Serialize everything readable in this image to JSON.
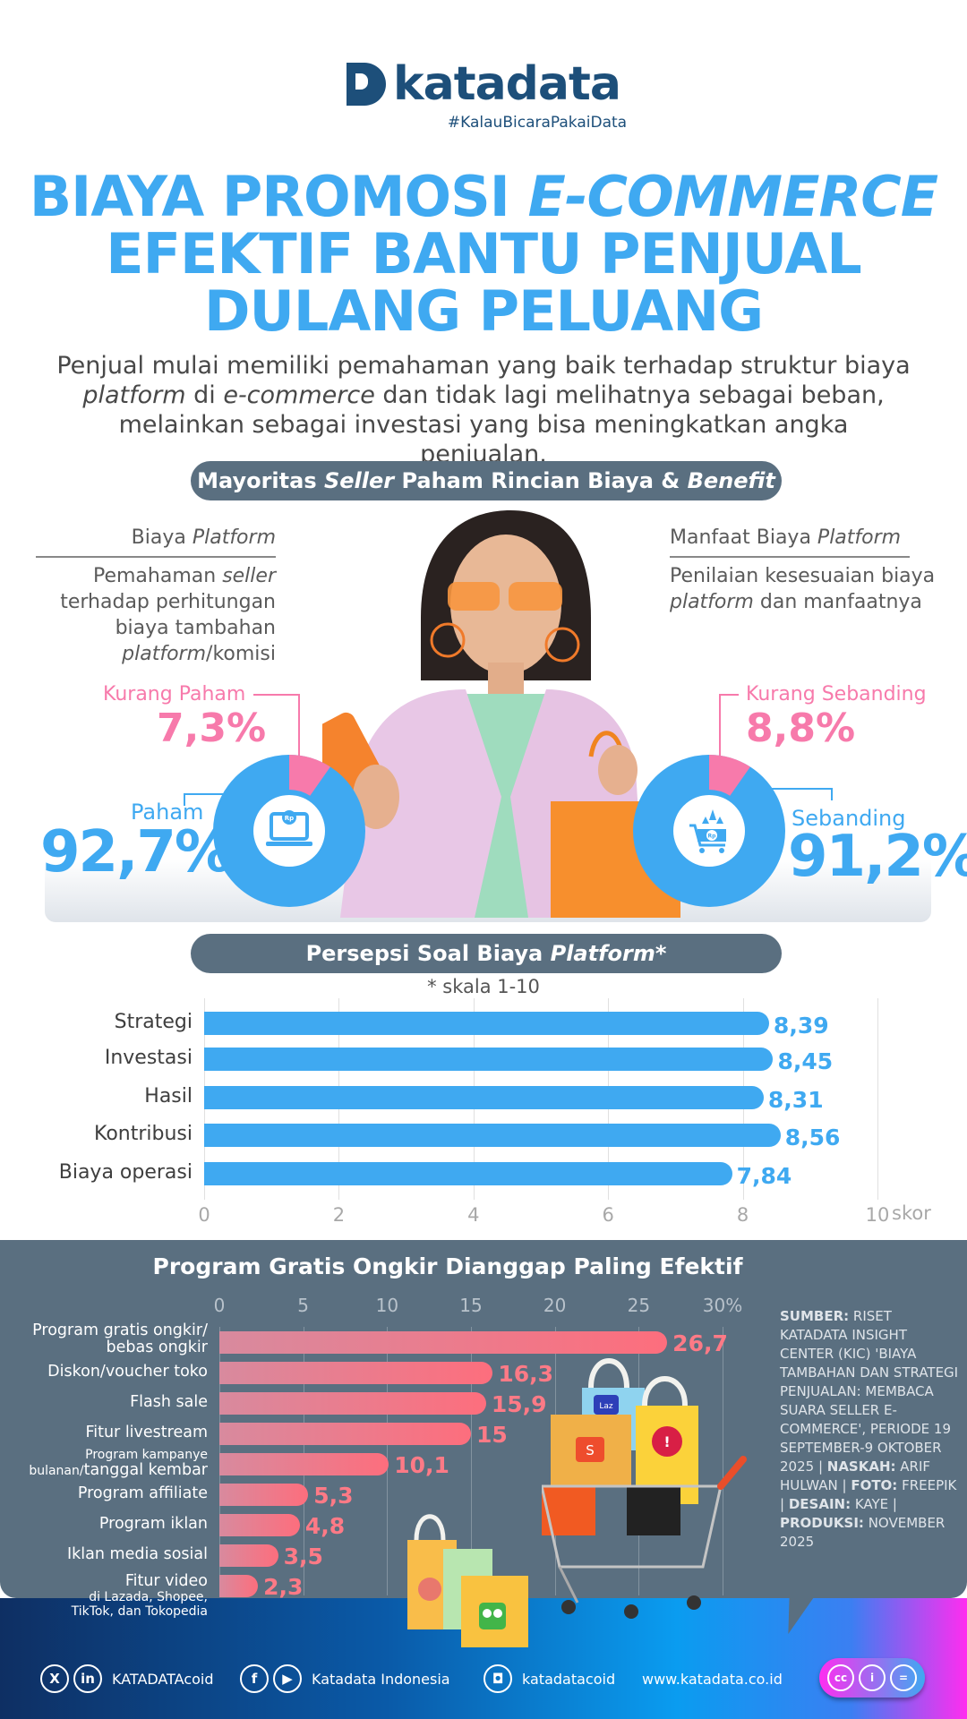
{
  "brand": {
    "name": "katadata",
    "tagline": "#KalauBicaraPakaiData",
    "color": "#1d4f7a"
  },
  "title": {
    "line1_a": "BIAYA PROMOSI ",
    "line1_b": "E-COMMERCE",
    "line2": "EFEKTIF BANTU PENJUAL",
    "line3": "DULANG PELUANG",
    "color": "#3fa9f1"
  },
  "lede": {
    "p1": "Penjual mulai memiliki pemahaman yang baik terhadap struktur biaya ",
    "p2_italic": "platform",
    "p3": " di ",
    "p4_italic": "e-commerce",
    "p5": " dan tidak lagi melihatnya sebagai beban, melainkan sebagai investasi yang bisa meningkatkan angka penjualan."
  },
  "section1": {
    "pill": {
      "a": "Mayoritas ",
      "b_italic": "Seller",
      "c": " Paham Rincian Biaya & ",
      "d_italic": "Benefit"
    },
    "left": {
      "heading_a": "Biaya ",
      "heading_b_italic": "Platform",
      "body_a": "Pemahaman ",
      "body_b_italic": "seller",
      "body_c": "terhadap perhitungan biaya tambahan",
      "body_d_italic": "platform",
      "body_e": "/komisi",
      "minor_label": "Kurang Paham",
      "minor_value": "7,3%",
      "major_label": "Paham",
      "major_value": "92,7%",
      "icon": "laptop-rupiah-icon"
    },
    "right": {
      "heading_a": "Manfaat Biaya ",
      "heading_b_italic": "Platform",
      "body_a": "Penilaian kesesuaian biaya ",
      "body_b_italic": "platform",
      "body_c": " dan manfaatnya",
      "minor_label": "Kurang Sebanding",
      "minor_value": "8,8%",
      "major_label": "Sebanding",
      "major_value": "91,2%",
      "icon": "cart-rupiah-arrows-icon"
    },
    "colors": {
      "major": "#3fa9f1",
      "minor": "#f77aab"
    }
  },
  "section2": {
    "pill": {
      "a": "Persepsi Soal Biaya ",
      "b_italic": "Platform",
      "c": "*"
    },
    "note": "* skala 1-10",
    "axis_unit": "skor"
  },
  "section3": {
    "title": "Program Gratis Ongkir Dianggap Paling Efektif",
    "labels": [
      {
        "l1": "Program gratis ongkir/",
        "l2": "bebas ongkir"
      },
      {
        "l1": "Diskon/voucher toko"
      },
      {
        "l1": "Flash sale"
      },
      {
        "l1": "Fitur livestream"
      },
      {
        "l1": "Program kampanye",
        "l2a": "bulanan/",
        "l2b": "tanggal kembar"
      },
      {
        "l1": "Program affiliate"
      },
      {
        "l1": "Program iklan"
      },
      {
        "l1": "Iklan media sosial"
      },
      {
        "l1": "Fitur video",
        "l2": "di Lazada, Shopee,",
        "l3": "TikTok, dan Tokopedia"
      }
    ],
    "source": {
      "sumber_label": "SUMBER:",
      "sumber_text": " RISET KATADATA INSIGHT CENTER (KIC) 'BIAYA TAMBAHAN DAN STRATEGI PENJUALAN: MEMBACA SUARA SELLER E-COMMERCE', PERIODE 19 SEPTEMBER-9 OKTOBER 2025 | ",
      "naskah_label": "NASKAH:",
      "naskah_text": " ARIF HULWAN | ",
      "foto_label": "FOTO:",
      "foto_text": " FREEPIK | ",
      "desain_label": "DESAIN:",
      "desain_text": " KAYE | ",
      "produksi_label": "PRODUKSI:",
      "produksi_text": " NOVEMBER 2025"
    },
    "illustration": "shopping-cart-with-marketplace-bags"
  },
  "footer": {
    "social1": "KATADATAcoid",
    "social2": "Katadata Indonesia",
    "social3": "katadatacoid",
    "website": "www.katadata.co.id",
    "icons": [
      "x-icon",
      "linkedin-icon",
      "facebook-icon",
      "youtube-icon",
      "instagram-icon",
      "cc-icon",
      "by-icon",
      "nd-icon"
    ]
  },
  "chart_data": [
    {
      "type": "pie",
      "title": "Biaya Platform — Pemahaman seller terhadap perhitungan biaya tambahan platform/komisi",
      "categories": [
        "Paham",
        "Kurang Paham"
      ],
      "values": [
        92.7,
        7.3
      ],
      "unit": "%",
      "donut": true
    },
    {
      "type": "pie",
      "title": "Manfaat Biaya Platform — Penilaian kesesuaian biaya platform dan manfaatnya",
      "categories": [
        "Sebanding",
        "Kurang Sebanding"
      ],
      "values": [
        91.2,
        8.8
      ],
      "unit": "%",
      "donut": true
    },
    {
      "type": "bar",
      "orientation": "horizontal",
      "title": "Persepsi Soal Biaya Platform*",
      "subtitle": "* skala 1-10",
      "categories": [
        "Strategi",
        "Investasi",
        "Hasil",
        "Kontribusi",
        "Biaya operasi"
      ],
      "values": [
        8.39,
        8.45,
        8.31,
        8.56,
        7.84
      ],
      "value_labels": [
        "8,39",
        "8,45",
        "8,31",
        "8,56",
        "7,84"
      ],
      "xlabel": "skor",
      "xlim": [
        0,
        10
      ],
      "xticks": [
        0,
        2,
        4,
        6,
        8,
        10
      ],
      "grid": true,
      "color": "#3fa9f1"
    },
    {
      "type": "bar",
      "orientation": "horizontal",
      "title": "Program Gratis Ongkir Dianggap Paling Efektif",
      "categories": [
        "Program gratis ongkir/bebas ongkir",
        "Diskon/voucher toko",
        "Flash sale",
        "Fitur livestream",
        "Program kampanye bulanan/tanggal kembar",
        "Program affiliate",
        "Program iklan",
        "Iklan media sosial",
        "Fitur video di Lazada, Shopee, TikTok, dan Tokopedia"
      ],
      "values": [
        26.7,
        16.3,
        15.9,
        15,
        10.1,
        5.3,
        4.8,
        3.5,
        2.3
      ],
      "value_labels": [
        "26,7",
        "16,3",
        "15,9",
        "15",
        "10,1",
        "5,3",
        "4,8",
        "3,5",
        "2,3"
      ],
      "xlim": [
        0,
        30
      ],
      "xticks": [
        0,
        5,
        10,
        15,
        20,
        25,
        30
      ],
      "xtick_labels": [
        "0",
        "5",
        "10",
        "15",
        "20",
        "25",
        "30%"
      ],
      "unit": "%",
      "grid": true,
      "color": "#fd6e7d"
    }
  ]
}
